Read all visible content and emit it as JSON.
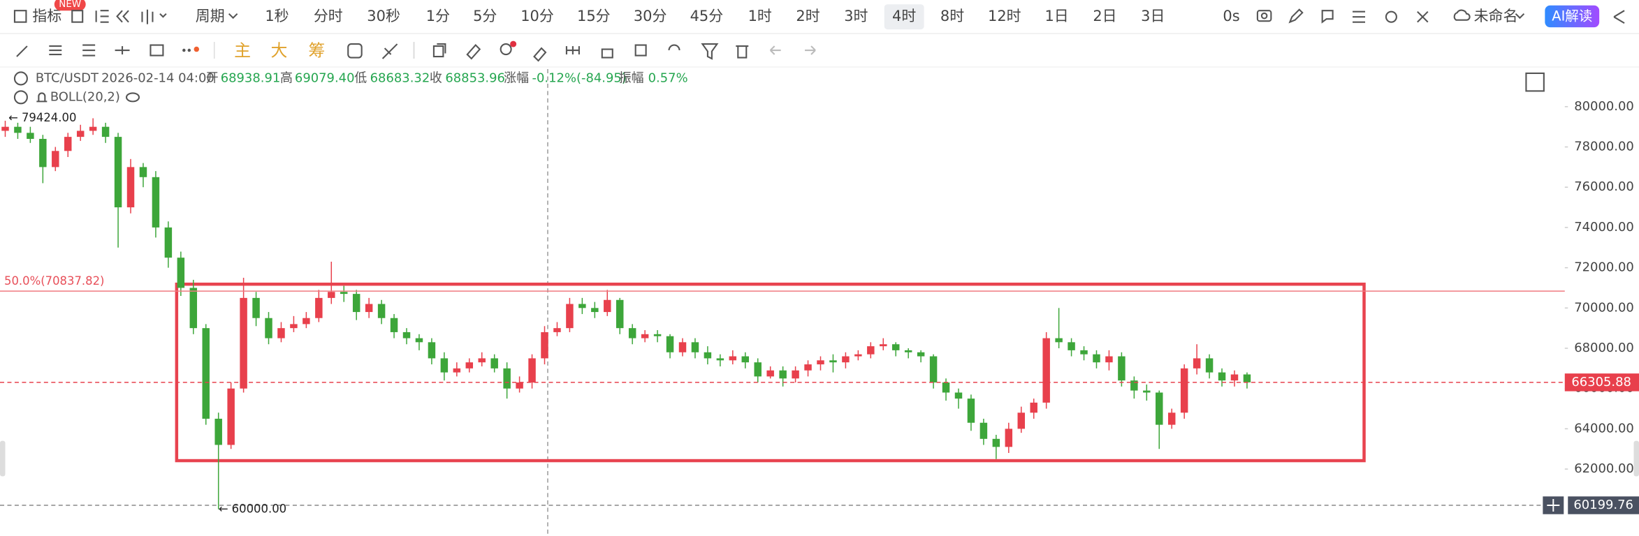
{
  "toolbar": {
    "indicator": "指标",
    "badge": "NEW",
    "period": "周期",
    "intervals": [
      "1秒",
      "分时",
      "30秒",
      "1分",
      "5分",
      "10分",
      "15分",
      "30分",
      "45分",
      "1时",
      "2时",
      "3时",
      "4时",
      "8时",
      "12时",
      "1日",
      "2日",
      "3日"
    ],
    "timer": "0s",
    "layout_name": "未命名",
    "ai_button": "AI解读"
  },
  "drawing_toolbar": {
    "main": "主",
    "large": "大",
    "chips": "筹"
  },
  "chart_data": {
    "type": "candlestick",
    "symbol": "BTC/USDT",
    "time": "2026-02-14 04:00",
    "ohlc_info": [
      {
        "label": "开",
        "value": "68938.91"
      },
      {
        "label": "高",
        "value": "69079.40"
      },
      {
        "label": "低",
        "value": "68683.32"
      },
      {
        "label": "收",
        "value": "68853.96"
      },
      {
        "label": "涨幅",
        "value": "-0.12%(-84.95)"
      },
      {
        "label": "振幅",
        "value": "0.57%"
      }
    ],
    "indicator": "BOLL(20,2)",
    "open": [
      78800,
      79000,
      78700,
      78400,
      77000,
      77800,
      78500,
      78800,
      79000,
      78500,
      75000,
      77000,
      76500,
      74000,
      72500,
      71000,
      69000,
      64500,
      63200,
      66000,
      70500,
      69500,
      68500,
      69000,
      69200,
      69500,
      70500,
      70800,
      70700,
      69800,
      70200,
      69500,
      68800,
      68500,
      68300,
      67500,
      66800,
      67000,
      67300,
      67500,
      67000,
      66000,
      66300,
      67500,
      68800,
      69000,
      70200,
      70000,
      69800,
      70400,
      69000,
      68500,
      68700,
      68600,
      67800,
      68300,
      67800,
      67500,
      67400,
      67600,
      67300,
      66600,
      66900,
      66500,
      66900,
      67200,
      67400,
      67300,
      67600,
      67700,
      68100,
      68200,
      67900,
      67800,
      67600,
      66300,
      65800,
      65500,
      64300,
      63500,
      63100,
      64000,
      64800,
      65300,
      68500,
      68300,
      67900,
      67700,
      67300,
      67600,
      66400,
      65900,
      65800,
      64200,
      64800,
      67000,
      67500,
      66800,
      66400,
      66700
    ],
    "high": [
      79300,
      79200,
      79000,
      78600,
      78000,
      78700,
      79100,
      79424,
      79200,
      78700,
      77400,
      77200,
      76800,
      74300,
      72800,
      71400,
      69200,
      64800,
      66300,
      71500,
      70800,
      69800,
      69300,
      69600,
      69800,
      70900,
      72300,
      71100,
      70900,
      70500,
      70400,
      69700,
      69000,
      68700,
      68500,
      67800,
      67300,
      67500,
      67800,
      67700,
      67300,
      66600,
      67700,
      69100,
      69300,
      70500,
      70500,
      70300,
      70900,
      70500,
      69200,
      68900,
      68900,
      68700,
      68500,
      68500,
      68100,
      67700,
      67900,
      67800,
      67500,
      67100,
      67100,
      67100,
      67400,
      67600,
      67700,
      67800,
      67900,
      68300,
      68500,
      68300,
      68000,
      67900,
      67700,
      66500,
      66000,
      65700,
      64500,
      63700,
      64300,
      65100,
      65500,
      68800,
      70000,
      68500,
      68100,
      67900,
      67900,
      67800,
      66600,
      66200,
      65900,
      65000,
      67200,
      68200,
      67700,
      67000,
      66900,
      66800
    ],
    "low": [
      78500,
      78400,
      78200,
      76200,
      76800,
      77500,
      78300,
      78600,
      78200,
      73000,
      74700,
      76000,
      73500,
      72000,
      70600,
      68700,
      64200,
      60000,
      63000,
      65800,
      69100,
      68200,
      68300,
      68800,
      69000,
      69300,
      70200,
      70300,
      69400,
      69500,
      69200,
      68500,
      68200,
      67900,
      67200,
      66400,
      66600,
      66800,
      67100,
      66800,
      65500,
      65800,
      66000,
      67200,
      68600,
      68800,
      69700,
      69500,
      69600,
      68700,
      68200,
      68300,
      68300,
      67500,
      67600,
      67500,
      67200,
      67100,
      67200,
      67000,
      66300,
      66500,
      66100,
      66300,
      66600,
      66900,
      66800,
      67000,
      67400,
      67500,
      67900,
      67600,
      67500,
      67300,
      66000,
      65400,
      65000,
      63900,
      63200,
      62500,
      62800,
      63800,
      64500,
      65000,
      68000,
      67600,
      67400,
      67000,
      66900,
      66100,
      65500,
      65400,
      63000,
      64000,
      64500,
      66700,
      66500,
      66100,
      66100,
      66000
    ],
    "close": [
      79000,
      78700,
      78400,
      77000,
      77800,
      78500,
      78800,
      79000,
      78500,
      75000,
      77000,
      76500,
      74000,
      72500,
      71000,
      69000,
      64500,
      63200,
      66000,
      70500,
      69500,
      68500,
      69000,
      69200,
      69500,
      70500,
      70800,
      70700,
      69800,
      70200,
      69500,
      68800,
      68500,
      68300,
      67500,
      66800,
      67000,
      67300,
      67500,
      67000,
      66000,
      66300,
      67500,
      68800,
      69000,
      70200,
      70000,
      69800,
      70400,
      69000,
      68500,
      68700,
      68600,
      67800,
      68300,
      67800,
      67500,
      67400,
      67600,
      67300,
      66600,
      66900,
      66500,
      66900,
      67200,
      67400,
      67300,
      67600,
      67700,
      68100,
      68200,
      67900,
      67800,
      67600,
      66300,
      65800,
      65500,
      64300,
      63500,
      63100,
      64000,
      64800,
      65300,
      68500,
      68300,
      67900,
      67700,
      67300,
      67600,
      66400,
      65900,
      65800,
      64200,
      64800,
      67000,
      67500,
      66800,
      66400,
      66700,
      66306
    ],
    "up_color": "#e8404c",
    "down_color": "#3da63a",
    "ylim": [
      58683,
      81867
    ],
    "yticks": [
      {
        "value": 62000,
        "label": "62000.00"
      },
      {
        "value": 64000,
        "label": "64000.00"
      },
      {
        "value": 66000,
        "label": "66000.00"
      },
      {
        "value": 68000,
        "label": "68000.00"
      },
      {
        "value": 70000,
        "label": "70000.00"
      },
      {
        "value": 72000,
        "label": "72000.00"
      },
      {
        "value": 74000,
        "label": "74000.00"
      },
      {
        "value": 76000,
        "label": "76000.00"
      },
      {
        "value": 78000,
        "label": "78000.00"
      },
      {
        "value": 80000,
        "label": "80000.00"
      }
    ],
    "fib_line": {
      "value": 70837.82,
      "label": "50.0%(70837.82)"
    },
    "current_price": {
      "value": 66305.88,
      "label": "66305.88"
    },
    "cursor_price": {
      "value": 60199.76,
      "label": "60199.76"
    },
    "high_mark": {
      "value": 79424,
      "label": "← 79424.00"
    },
    "low_mark": {
      "value": 60000,
      "label": "← 60000.00"
    }
  }
}
